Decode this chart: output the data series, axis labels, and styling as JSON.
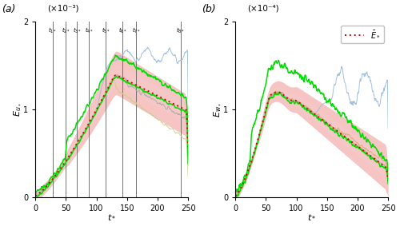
{
  "panel_a": {
    "title": "(a)",
    "ylabel": "$E_{u_*}$",
    "xlabel": "$t_*$",
    "scale_label": "(×10⁻³)",
    "ylim": [
      0,
      2
    ],
    "xlim": [
      0,
      250
    ],
    "yticks": [
      0,
      1,
      2
    ],
    "xticks": [
      0,
      50,
      100,
      150,
      200,
      250
    ],
    "vlines": [
      28,
      50,
      68,
      88,
      115,
      143,
      165,
      238
    ],
    "vline_labels": [
      "$t_{1*}$",
      "$t_{2*}$",
      "$t_{3*}$",
      "$t_{4*}$",
      "$t_{5*}$",
      "$t_{6*}$",
      "$t_{7*}$",
      "$t_{8*}$"
    ]
  },
  "panel_b": {
    "title": "(b)",
    "ylabel": "$E_{w_*}$",
    "xlabel": "$t_*$",
    "scale_label": "(×10⁻⁴)",
    "ylim": [
      0,
      2
    ],
    "xlim": [
      0,
      250
    ],
    "yticks": [
      0,
      1,
      2
    ],
    "xticks": [
      0,
      50,
      100,
      150,
      200,
      250
    ]
  },
  "mean_color": "#dd0000",
  "green_color": "#00dd00",
  "fill_color_outer": "#f5b0b0",
  "fill_color_inner": "#f5c8c8",
  "blue_line_color": "#99bbdd",
  "gray_line_color": "#aaaaaa",
  "olive_line_color": "#cccc88",
  "orange_line_color": "#ddaa77"
}
